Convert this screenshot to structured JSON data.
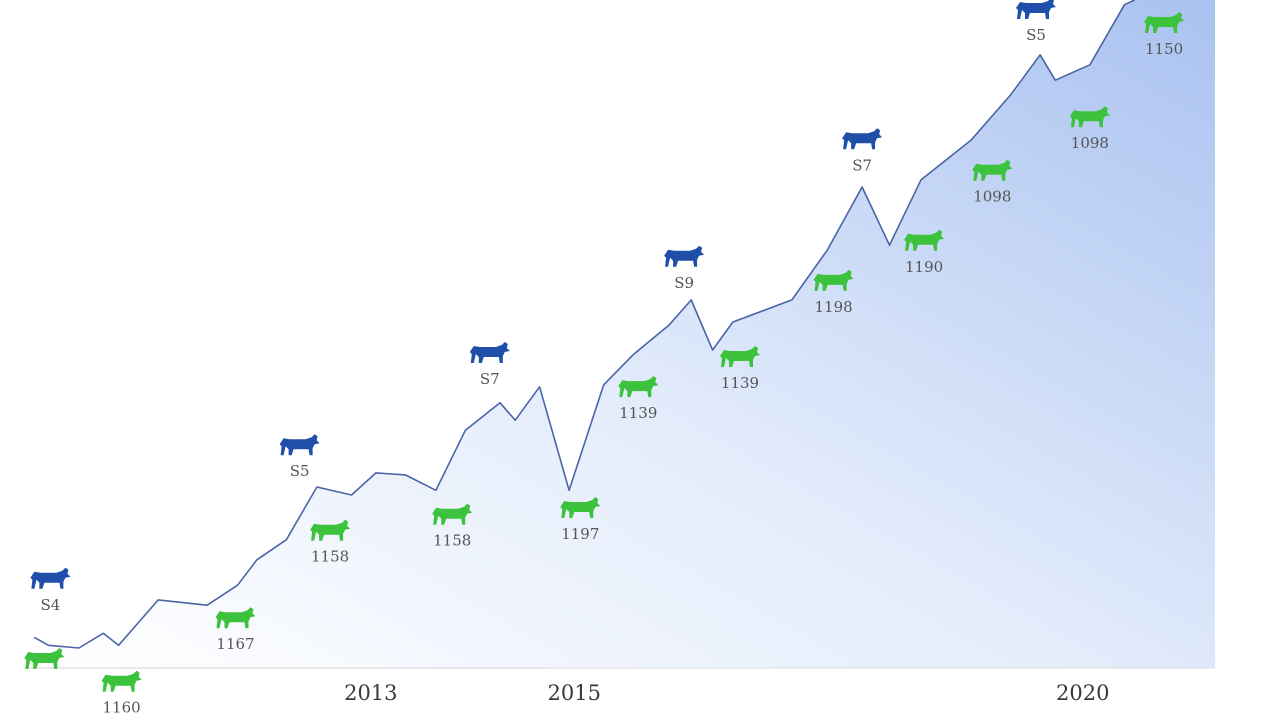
{
  "chart_data": {
    "type": "line",
    "xlim": [
      2009.6,
      2021.3
    ],
    "ylim": [
      0,
      100
    ],
    "xticks": [
      2013,
      2015,
      2020
    ],
    "color": "#4a64a8",
    "x": [
      2009.69,
      2009.83,
      2010.13,
      2010.37,
      2010.52,
      2010.91,
      2011.39,
      2011.69,
      2011.88,
      2012.17,
      2012.47,
      2012.81,
      2013.05,
      2013.34,
      2013.64,
      2013.93,
      2014.27,
      2014.42,
      2014.66,
      2014.95,
      2015.29,
      2015.58,
      2015.93,
      2016.15,
      2016.36,
      2016.56,
      2017.14,
      2017.49,
      2017.83,
      2018.1,
      2018.41,
      2018.9,
      2019.29,
      2019.58,
      2019.73,
      2020.07,
      2020.41,
      2020.51
    ],
    "values": [
      4.6,
      3.4,
      3.0,
      5.2,
      3.4,
      10.2,
      9.4,
      12.4,
      16.2,
      19.2,
      27.1,
      25.9,
      29.2,
      28.9,
      26.6,
      35.6,
      39.7,
      37.1,
      42.1,
      26.6,
      42.4,
      46.9,
      51.3,
      55.1,
      47.6,
      51.8,
      55.1,
      62.6,
      72.0,
      63.3,
      73.1,
      79.0,
      85.8,
      91.8,
      88.0,
      90.3,
      99.3,
      100
    ],
    "annotations": [
      {
        "text": "S4",
        "x": 2009.85,
        "y": 13.2,
        "color": "#1f4fa8"
      },
      {
        "text": "S5",
        "x": 2012.3,
        "y": 33.2,
        "color": "#1f4fa8"
      },
      {
        "text": "S7",
        "x": 2014.17,
        "y": 47.0,
        "color": "#1f4fa8"
      },
      {
        "text": "S9",
        "x": 2016.08,
        "y": 61.4,
        "color": "#1f4fa8"
      },
      {
        "text": "S7",
        "x": 2017.83,
        "y": 79.0,
        "color": "#1f4fa8"
      },
      {
        "text": "S5",
        "x": 2019.54,
        "y": 98.5,
        "color": "#1f4fa8"
      },
      {
        "x": 2009.79,
        "y": 1.2,
        "color": "#3cc23c"
      },
      {
        "text": "1160",
        "x": 2010.55,
        "y": -2.2,
        "color": "#3cc23c"
      },
      {
        "text": "1167",
        "x": 2011.67,
        "y": 7.3,
        "color": "#3cc23c"
      },
      {
        "text": "1158",
        "x": 2012.6,
        "y": 20.4,
        "color": "#3cc23c"
      },
      {
        "text": "1158",
        "x": 2013.8,
        "y": 22.8,
        "color": "#3cc23c"
      },
      {
        "text": "1197",
        "x": 2015.06,
        "y": 23.8,
        "color": "#3cc23c"
      },
      {
        "text": "1139",
        "x": 2015.63,
        "y": 41.9,
        "color": "#3cc23c"
      },
      {
        "text": "1139",
        "x": 2016.63,
        "y": 46.4,
        "color": "#3cc23c"
      },
      {
        "text": "1198",
        "x": 2017.55,
        "y": 57.8,
        "color": "#3cc23c"
      },
      {
        "text": "1190",
        "x": 2018.44,
        "y": 63.8,
        "color": "#3cc23c"
      },
      {
        "text": "1098",
        "x": 2019.11,
        "y": 74.3,
        "color": "#3cc23c"
      },
      {
        "text": "1098",
        "x": 2020.07,
        "y": 82.3,
        "color": "#3cc23c"
      },
      {
        "text": "1150",
        "x": 2020.8,
        "y": 96.4,
        "color": "#3cc23c"
      }
    ]
  }
}
